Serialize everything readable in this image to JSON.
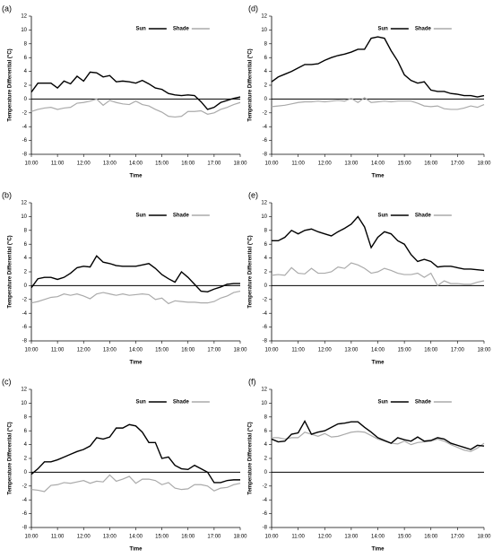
{
  "chart_data": [
    {
      "type": "line",
      "label": "(a)",
      "xlabel": "Time",
      "ylabel": "Temperature Differential (°C)",
      "x": [
        10,
        10.25,
        10.5,
        10.75,
        11,
        11.25,
        11.5,
        11.75,
        12,
        12.25,
        12.5,
        12.75,
        13,
        13.25,
        13.5,
        13.75,
        14,
        14.25,
        14.5,
        14.75,
        15,
        15.25,
        15.5,
        15.75,
        16,
        16.25,
        16.5,
        16.75,
        17,
        17.25,
        17.5,
        17.75,
        18
      ],
      "xlim": [
        10,
        18
      ],
      "xticks": [
        {
          "value": 10,
          "label": "10:00"
        },
        {
          "value": 11,
          "label": "11:00"
        },
        {
          "value": 12,
          "label": "12:00"
        },
        {
          "value": 13,
          "label": "13:00"
        },
        {
          "value": 14,
          "label": "14:00"
        },
        {
          "value": 15,
          "label": "15:00"
        },
        {
          "value": 16,
          "label": "16:00"
        },
        {
          "value": 17,
          "label": "17:00"
        },
        {
          "value": 18,
          "label": "18:00"
        }
      ],
      "ylim": [
        -8,
        12
      ],
      "yticks": [
        -8,
        -6,
        -4,
        -2,
        0,
        2,
        4,
        6,
        8,
        10,
        12
      ],
      "series": [
        {
          "name": "Sun",
          "color": "#000000",
          "values": [
            1.0,
            2.3,
            2.3,
            2.3,
            1.6,
            2.6,
            2.2,
            3.3,
            2.6,
            3.9,
            3.8,
            3.2,
            3.4,
            2.5,
            2.6,
            2.5,
            2.3,
            2.7,
            2.2,
            1.6,
            1.4,
            0.8,
            0.6,
            0.5,
            0.6,
            0.5,
            -0.4,
            -1.5,
            -1.2,
            -0.5,
            -0.2,
            0.1,
            0.3
          ]
        },
        {
          "name": "Shade",
          "color": "#aaaaaa",
          "values": [
            -1.8,
            -1.5,
            -1.3,
            -1.2,
            -1.5,
            -1.3,
            -1.2,
            -0.6,
            -0.5,
            -0.3,
            0.0,
            -0.9,
            -0.2,
            -0.5,
            -0.7,
            -0.8,
            -0.3,
            -0.8,
            -1.0,
            -1.5,
            -1.9,
            -2.5,
            -2.6,
            -2.5,
            -1.8,
            -1.8,
            -1.7,
            -2.2,
            -2.0,
            -1.5,
            -1.2,
            -0.8,
            -0.5
          ]
        }
      ]
    },
    {
      "type": "line",
      "label": "(b)",
      "xlabel": "Time",
      "ylabel": "Temperature Differential (°C)",
      "x": [
        10,
        10.25,
        10.5,
        10.75,
        11,
        11.25,
        11.5,
        11.75,
        12,
        12.25,
        12.5,
        12.75,
        13,
        13.25,
        13.5,
        13.75,
        14,
        14.25,
        14.5,
        14.75,
        15,
        15.25,
        15.5,
        15.75,
        16,
        16.25,
        16.5,
        16.75,
        17,
        17.25,
        17.5,
        17.75,
        18
      ],
      "xlim": [
        10,
        18
      ],
      "xticks": [
        {
          "value": 10,
          "label": "10:00"
        },
        {
          "value": 11,
          "label": "11:00"
        },
        {
          "value": 12,
          "label": "12:00"
        },
        {
          "value": 13,
          "label": "13:00"
        },
        {
          "value": 14,
          "label": "14:00"
        },
        {
          "value": 15,
          "label": "15:00"
        },
        {
          "value": 16,
          "label": "16:00"
        },
        {
          "value": 17,
          "label": "17:00"
        },
        {
          "value": 18,
          "label": "18:00"
        }
      ],
      "ylim": [
        -8,
        12
      ],
      "yticks": [
        -8,
        -6,
        -4,
        -2,
        0,
        2,
        4,
        6,
        8,
        10,
        12
      ],
      "series": [
        {
          "name": "Sun",
          "color": "#000000",
          "values": [
            -0.3,
            1.0,
            1.2,
            1.2,
            0.9,
            1.2,
            1.8,
            2.6,
            2.8,
            2.7,
            4.3,
            3.4,
            3.2,
            2.9,
            2.8,
            2.8,
            2.8,
            3.0,
            3.2,
            2.5,
            1.6,
            1.0,
            0.5,
            2.0,
            1.2,
            0.2,
            -0.8,
            -0.9,
            -0.5,
            -0.2,
            0.2,
            0.3,
            0.3
          ]
        },
        {
          "name": "Shade",
          "color": "#aaaaaa",
          "values": [
            -2.5,
            -2.3,
            -2.0,
            -1.7,
            -1.6,
            -1.2,
            -1.4,
            -1.2,
            -1.5,
            -1.9,
            -1.2,
            -1.0,
            -1.2,
            -1.4,
            -1.2,
            -1.4,
            -1.3,
            -1.2,
            -1.3,
            -2.0,
            -1.8,
            -2.6,
            -2.2,
            -2.3,
            -2.4,
            -2.4,
            -2.5,
            -2.5,
            -2.3,
            -1.8,
            -1.5,
            -1.0,
            -0.8
          ]
        }
      ]
    },
    {
      "type": "line",
      "label": "(c)",
      "xlabel": "Time",
      "ylabel": "Temperature Differential (°C)",
      "x": [
        10,
        10.25,
        10.5,
        10.75,
        11,
        11.25,
        11.5,
        11.75,
        12,
        12.25,
        12.5,
        12.75,
        13,
        13.25,
        13.5,
        13.75,
        14,
        14.25,
        14.5,
        14.75,
        15,
        15.25,
        15.5,
        15.75,
        16,
        16.25,
        16.5,
        16.75,
        17,
        17.25,
        17.5,
        17.75,
        18
      ],
      "xlim": [
        10,
        18
      ],
      "xticks": [
        {
          "value": 10,
          "label": "10:00"
        },
        {
          "value": 11,
          "label": "11:00"
        },
        {
          "value": 12,
          "label": "12:00"
        },
        {
          "value": 13,
          "label": "13:00"
        },
        {
          "value": 14,
          "label": "14:00"
        },
        {
          "value": 15,
          "label": "15:00"
        },
        {
          "value": 16,
          "label": "16:00"
        },
        {
          "value": 17,
          "label": "17:00"
        },
        {
          "value": 18,
          "label": "18:00"
        }
      ],
      "ylim": [
        -8,
        12
      ],
      "yticks": [
        -8,
        -6,
        -4,
        -2,
        0,
        2,
        4,
        6,
        8,
        10,
        12
      ],
      "series": [
        {
          "name": "Sun",
          "color": "#000000",
          "values": [
            -0.3,
            0.5,
            1.5,
            1.5,
            1.8,
            2.2,
            2.6,
            3.0,
            3.3,
            3.8,
            5.0,
            4.8,
            5.1,
            6.4,
            6.4,
            6.9,
            6.7,
            5.8,
            4.3,
            4.3,
            2.0,
            2.2,
            1.0,
            0.5,
            0.4,
            1.0,
            0.5,
            0.0,
            -1.5,
            -1.5,
            -1.2,
            -1.1,
            -1.1
          ]
        },
        {
          "name": "Shade",
          "color": "#aaaaaa",
          "values": [
            -2.5,
            -2.6,
            -2.8,
            -1.9,
            -1.8,
            -1.5,
            -1.6,
            -1.4,
            -1.2,
            -1.6,
            -1.3,
            -1.4,
            -0.4,
            -1.3,
            -1.0,
            -0.6,
            -1.6,
            -1.0,
            -1.0,
            -1.2,
            -1.8,
            -1.5,
            -2.3,
            -2.5,
            -2.4,
            -1.8,
            -1.8,
            -2.0,
            -2.7,
            -2.3,
            -2.2,
            -1.8,
            -1.6
          ]
        }
      ]
    },
    {
      "type": "line",
      "label": "(d)",
      "xlabel": "Time",
      "ylabel": "Temperature Differential (°C)",
      "x": [
        10,
        10.25,
        10.5,
        10.75,
        11,
        11.25,
        11.5,
        11.75,
        12,
        12.25,
        12.5,
        12.75,
        13,
        13.25,
        13.5,
        13.75,
        14,
        14.25,
        14.5,
        14.75,
        15,
        15.25,
        15.5,
        15.75,
        16,
        16.25,
        16.5,
        16.75,
        17,
        17.25,
        17.5,
        17.75,
        18
      ],
      "xlim": [
        10,
        18
      ],
      "xticks": [
        {
          "value": 10,
          "label": "10:00"
        },
        {
          "value": 11,
          "label": "11:00"
        },
        {
          "value": 12,
          "label": "12:00"
        },
        {
          "value": 13,
          "label": "13:00"
        },
        {
          "value": 14,
          "label": "14:00"
        },
        {
          "value": 15,
          "label": "15:00"
        },
        {
          "value": 16,
          "label": "16:00"
        },
        {
          "value": 17,
          "label": "17:00"
        },
        {
          "value": 18,
          "label": "18:00"
        }
      ],
      "ylim": [
        -8,
        12
      ],
      "yticks": [
        -8,
        -6,
        -4,
        -2,
        0,
        2,
        4,
        6,
        8,
        10,
        12
      ],
      "series": [
        {
          "name": "Sun",
          "color": "#000000",
          "values": [
            2.5,
            3.2,
            3.6,
            4.0,
            4.5,
            5.0,
            5.0,
            5.1,
            5.6,
            6.0,
            6.3,
            6.5,
            6.8,
            7.2,
            7.2,
            8.8,
            9.0,
            8.8,
            7.0,
            5.5,
            3.5,
            2.7,
            2.3,
            2.5,
            1.3,
            1.1,
            1.1,
            0.8,
            0.7,
            0.5,
            0.5,
            0.3,
            0.5
          ]
        },
        {
          "name": "Shade",
          "color": "#aaaaaa",
          "values": [
            -1.1,
            -1.0,
            -0.9,
            -0.7,
            -0.5,
            -0.4,
            -0.4,
            -0.3,
            -0.4,
            -0.3,
            -0.2,
            -0.3,
            0.1,
            -0.5,
            0.2,
            -0.5,
            -0.4,
            -0.3,
            -0.4,
            -0.3,
            -0.3,
            -0.3,
            -0.6,
            -1.0,
            -1.1,
            -1.0,
            -1.4,
            -1.5,
            -1.5,
            -1.3,
            -1.0,
            -1.2,
            -0.8
          ]
        }
      ]
    },
    {
      "type": "line",
      "label": "(e)",
      "xlabel": "Time",
      "ylabel": "Temperature Differential (°C)",
      "x": [
        10,
        10.25,
        10.5,
        10.75,
        11,
        11.25,
        11.5,
        11.75,
        12,
        12.25,
        12.5,
        12.75,
        13,
        13.25,
        13.5,
        13.75,
        14,
        14.25,
        14.5,
        14.75,
        15,
        15.25,
        15.5,
        15.75,
        16,
        16.25,
        16.5,
        16.75,
        17,
        17.25,
        17.5,
        17.75,
        18
      ],
      "xlim": [
        10,
        18
      ],
      "xticks": [
        {
          "value": 10,
          "label": "10:00"
        },
        {
          "value": 11,
          "label": "11:00"
        },
        {
          "value": 12,
          "label": "12:00"
        },
        {
          "value": 13,
          "label": "13:00"
        },
        {
          "value": 14,
          "label": "14:00"
        },
        {
          "value": 15,
          "label": "15:00"
        },
        {
          "value": 16,
          "label": "16:00"
        },
        {
          "value": 17,
          "label": "17:00"
        },
        {
          "value": 18,
          "label": "18:00"
        }
      ],
      "ylim": [
        -8,
        12
      ],
      "yticks": [
        -8,
        -6,
        -4,
        -2,
        0,
        2,
        4,
        6,
        8,
        10,
        12
      ],
      "series": [
        {
          "name": "Sun",
          "color": "#000000",
          "values": [
            6.5,
            6.5,
            7.0,
            8.0,
            7.5,
            8.0,
            8.2,
            7.8,
            7.5,
            7.2,
            7.8,
            8.3,
            8.9,
            10.0,
            8.5,
            5.5,
            7.0,
            7.8,
            7.5,
            6.5,
            6.0,
            4.5,
            3.5,
            3.8,
            3.5,
            2.7,
            2.8,
            2.8,
            2.6,
            2.4,
            2.4,
            2.3,
            2.2
          ]
        },
        {
          "name": "Shade",
          "color": "#aaaaaa",
          "values": [
            1.5,
            1.6,
            1.5,
            2.6,
            1.8,
            1.7,
            2.5,
            1.8,
            1.8,
            2.0,
            2.7,
            2.5,
            3.3,
            3.0,
            2.5,
            1.8,
            2.0,
            2.5,
            2.2,
            1.8,
            1.6,
            1.6,
            1.8,
            1.2,
            1.8,
            0.0,
            0.7,
            0.3,
            0.3,
            0.2,
            0.2,
            0.5,
            0.7
          ]
        }
      ]
    },
    {
      "type": "line",
      "label": "(f)",
      "xlabel": "Time",
      "ylabel": "Temperature Differential (°C)",
      "x": [
        10,
        10.25,
        10.5,
        10.75,
        11,
        11.25,
        11.5,
        11.75,
        12,
        12.25,
        12.5,
        12.75,
        13,
        13.25,
        13.5,
        13.75,
        14,
        14.25,
        14.5,
        14.75,
        15,
        15.25,
        15.5,
        15.75,
        16,
        16.25,
        16.5,
        16.75,
        17,
        17.25,
        17.5,
        17.75,
        18
      ],
      "xlim": [
        10,
        18
      ],
      "xticks": [
        {
          "value": 10,
          "label": "10:00"
        },
        {
          "value": 11,
          "label": "11:00"
        },
        {
          "value": 12,
          "label": "12:00"
        },
        {
          "value": 13,
          "label": "13:00"
        },
        {
          "value": 14,
          "label": "14:00"
        },
        {
          "value": 15,
          "label": "15:00"
        },
        {
          "value": 16,
          "label": "16:00"
        },
        {
          "value": 17,
          "label": "17:00"
        },
        {
          "value": 18,
          "label": "18:00"
        }
      ],
      "ylim": [
        -8,
        12
      ],
      "yticks": [
        -8,
        -6,
        -4,
        -2,
        0,
        2,
        4,
        6,
        8,
        10,
        12
      ],
      "series": [
        {
          "name": "Sun",
          "color": "#000000",
          "values": [
            4.8,
            4.4,
            4.5,
            5.5,
            5.7,
            7.4,
            5.5,
            5.8,
            6.0,
            6.5,
            7.0,
            7.1,
            7.3,
            7.3,
            6.5,
            5.8,
            5.0,
            4.6,
            4.2,
            5.0,
            4.7,
            4.5,
            5.1,
            4.5,
            4.6,
            5.0,
            4.8,
            4.2,
            3.9,
            3.6,
            3.3,
            3.9,
            3.8
          ]
        },
        {
          "name": "Shade",
          "color": "#aaaaaa",
          "values": [
            5.0,
            5.0,
            4.8,
            5.0,
            5.0,
            5.8,
            5.5,
            5.2,
            5.6,
            5.1,
            5.2,
            5.5,
            5.8,
            5.9,
            5.8,
            5.3,
            4.8,
            4.5,
            4.2,
            4.1,
            4.5,
            4.0,
            4.3,
            4.4,
            4.5,
            4.8,
            4.5,
            4.0,
            3.6,
            3.2,
            3.0,
            3.5,
            4.2
          ]
        }
      ]
    }
  ]
}
